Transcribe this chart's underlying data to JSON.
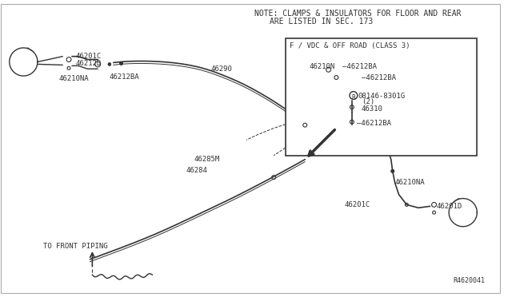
{
  "note_text1": "NOTE: CLAMPS & INSULATORS FOR FLOOR AND REAR",
  "note_text2": "ARE LISTED IN SEC. 173",
  "inset_title": "F / VDC & OFF ROAD (CLASS 3)",
  "ref_code": "R4620041",
  "bg_color": "#ffffff",
  "line_color": "#333333",
  "label_color": "#333333",
  "label_fontsize": 6.5,
  "note_fontsize": 7.0
}
